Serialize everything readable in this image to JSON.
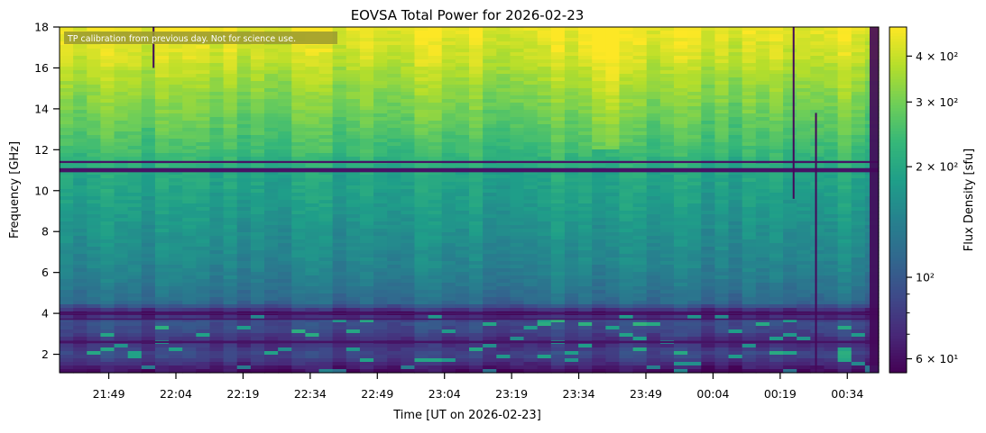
{
  "chart_data": {
    "type": "heatmap",
    "title": "EOVSA Total Power for 2026-02-23",
    "xlabel": "Time [UT on 2026-02-23]",
    "ylabel": "Frequency [GHz]",
    "annotation": "TP calibration from previous day. Not for science use.",
    "x_ticks": [
      "21:49",
      "22:04",
      "22:19",
      "22:34",
      "22:49",
      "23:04",
      "23:19",
      "23:34",
      "23:49",
      "00:04",
      "00:19",
      "00:34"
    ],
    "x_range_minutes_after_2130": [
      8,
      191
    ],
    "y_ticks": [
      2,
      4,
      6,
      8,
      10,
      12,
      14,
      16,
      18
    ],
    "ylim": [
      1.1,
      18
    ],
    "colorbar": {
      "label": "Flux Density [sfu]",
      "scale": "log",
      "range": [
        55,
        480
      ],
      "colormap": "viridis",
      "ticks": [
        {
          "value": 60,
          "label": "6 × 10¹"
        },
        {
          "value": 100,
          "label": "10²"
        },
        {
          "value": 200,
          "label": "2 × 10²"
        },
        {
          "value": 300,
          "label": "3 × 10²"
        },
        {
          "value": 400,
          "label": "4 × 10²"
        }
      ],
      "minor_ticks": [
        70,
        80,
        90
      ]
    },
    "frequency_profile_sfu": [
      {
        "ghz": 1.2,
        "sfu": 60
      },
      {
        "ghz": 1.6,
        "sfu": 75
      },
      {
        "ghz": 2.0,
        "sfu": 90
      },
      {
        "ghz": 2.6,
        "sfu": 70
      },
      {
        "ghz": 3.0,
        "sfu": 85
      },
      {
        "ghz": 3.6,
        "sfu": 95
      },
      {
        "ghz": 4.0,
        "sfu": 60
      },
      {
        "ghz": 4.5,
        "sfu": 115
      },
      {
        "ghz": 5.5,
        "sfu": 135
      },
      {
        "ghz": 6.5,
        "sfu": 150
      },
      {
        "ghz": 8.0,
        "sfu": 165
      },
      {
        "ghz": 9.5,
        "sfu": 185
      },
      {
        "ghz": 10.9,
        "sfu": 200
      },
      {
        "ghz": 12.0,
        "sfu": 245
      },
      {
        "ghz": 13.5,
        "sfu": 290
      },
      {
        "ghz": 15.0,
        "sfu": 340
      },
      {
        "ghz": 16.5,
        "sfu": 410
      },
      {
        "ghz": 18.0,
        "sfu": 460
      }
    ],
    "dark_bands_ghz": [
      [
        10.9,
        11.1
      ],
      [
        11.35,
        11.45
      ],
      [
        3.95,
        4.05
      ],
      [
        3.7,
        3.75
      ],
      [
        2.55,
        2.65
      ]
    ],
    "bright_interval_minutes_after_2130": [
      127,
      132
    ],
    "dropout_lines_minutes_after_2130": [
      {
        "t": 172,
        "ghz_from": 9.6,
        "ghz_to": 18
      },
      {
        "t": 177,
        "ghz_from": 1.1,
        "ghz_to": 13.8
      },
      {
        "t": 29,
        "ghz_from": 16,
        "ghz_to": 18
      }
    ]
  }
}
